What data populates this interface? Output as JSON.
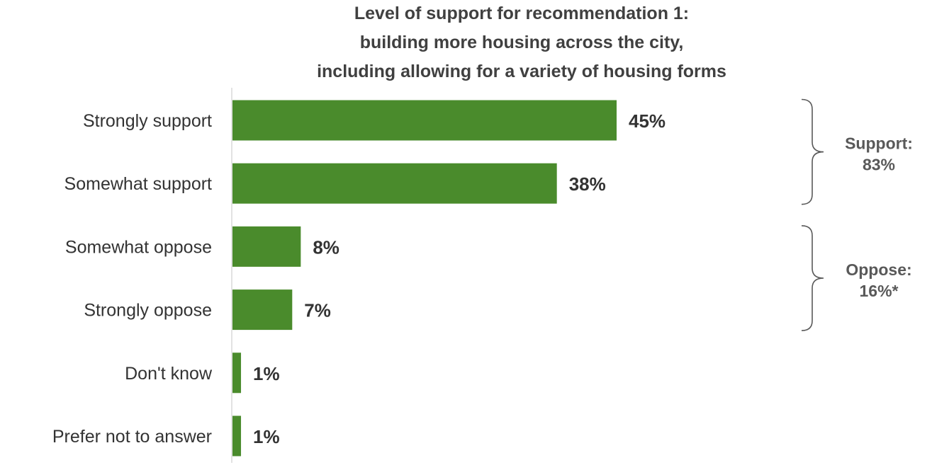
{
  "chart_data": {
    "type": "bar",
    "orientation": "horizontal",
    "title": [
      "Level of support for recommendation 1:",
      "building more housing across the city,",
      "including allowing for a variety of housing forms"
    ],
    "categories": [
      "Strongly support",
      "Somewhat support",
      "Somewhat oppose",
      "Strongly oppose",
      "Don't know",
      "Prefer not to answer"
    ],
    "values": [
      45,
      38,
      8,
      7,
      1,
      1
    ],
    "value_labels": [
      "45%",
      "38%",
      "8%",
      "7%",
      "1%",
      "1%"
    ],
    "xlim": [
      0,
      55
    ],
    "grid": false,
    "bar_color": "#4a8b2c",
    "groups": [
      {
        "label_line1": "Support:",
        "label_line2": "83%",
        "start_index": 0,
        "end_index": 1
      },
      {
        "label_line1": "Oppose:",
        "label_line2": "16%*",
        "start_index": 2,
        "end_index": 3
      }
    ]
  }
}
